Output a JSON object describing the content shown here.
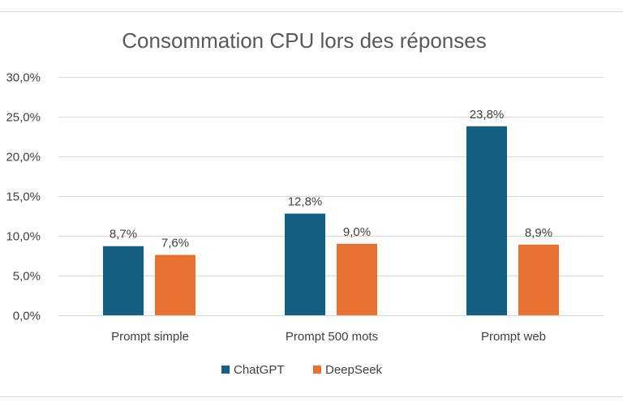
{
  "chart_data": {
    "type": "bar",
    "title": "Consommation CPU lors des réponses",
    "categories": [
      "Prompt simple",
      "Prompt 500 mots",
      "Prompt web"
    ],
    "series": [
      {
        "name": "ChatGPT",
        "values": [
          8.7,
          12.8,
          23.8
        ],
        "labels": [
          "8,7%",
          "12,8%",
          "23,8%"
        ],
        "color": "#156082"
      },
      {
        "name": "DeepSeek",
        "values": [
          7.6,
          9.0,
          8.9
        ],
        "labels": [
          "7,6%",
          "9,0%",
          "8,9%"
        ],
        "color": "#E97132"
      }
    ],
    "ylim": [
      0,
      30
    ],
    "yticks": [
      0,
      5,
      10,
      15,
      20,
      25,
      30
    ],
    "ytick_labels": [
      "0,0%",
      "5,0%",
      "10,0%",
      "15,0%",
      "20,0%",
      "25,0%",
      "30,0%"
    ],
    "grid": true,
    "legend_position": "bottom"
  }
}
